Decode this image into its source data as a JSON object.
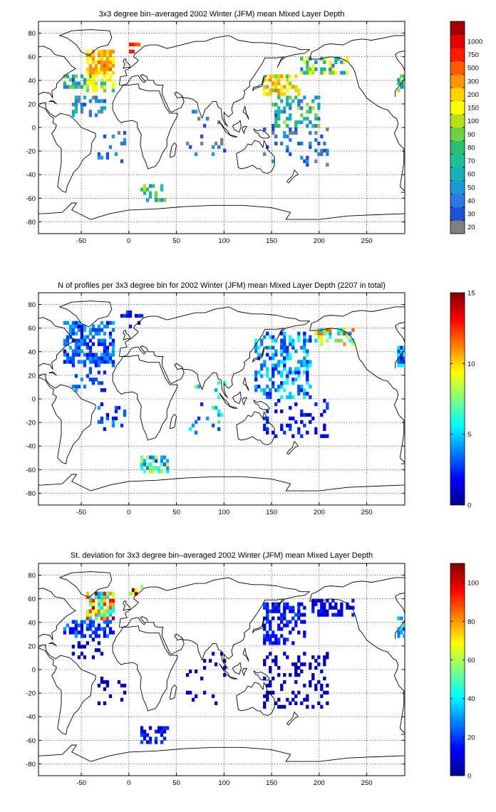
{
  "chart_data": [
    {
      "type": "heatmap",
      "title": "3x3 degree bin–averaged 2002 Winter (JFM) mean Mixed Layer Depth",
      "xlim": [
        -95,
        290
      ],
      "ylim": [
        -90,
        90
      ],
      "xticks": [
        -50,
        0,
        50,
        100,
        150,
        200,
        250
      ],
      "yticks": [
        80,
        60,
        40,
        20,
        0,
        -20,
        -40,
        -60,
        -80
      ],
      "grid": true,
      "bin_size_deg": 3,
      "colorbar": {
        "type": "categorical",
        "labels": [
          "20",
          "30",
          "40",
          "50",
          "60",
          "70",
          "80",
          "90",
          "100",
          "150",
          "200",
          "300",
          "500",
          "750",
          "1000"
        ],
        "colors": [
          "#808080",
          "#1f50d8",
          "#2b78e4",
          "#1c9ad6",
          "#16b2b8",
          "#1fc095",
          "#28c070",
          "#6fd040",
          "#b5e01c",
          "#ffff00",
          "#ffd200",
          "#ff9400",
          "#ff5a00",
          "#ff1a00",
          "#e20000",
          "#a00000"
        ]
      },
      "regions": [
        {
          "lon": [
            -45,
            -15
          ],
          "lat": [
            45,
            66
          ],
          "value": 200,
          "density": 0.8
        },
        {
          "lon": [
            -45,
            -15
          ],
          "lat": [
            28,
            45
          ],
          "value": 100,
          "density": 0.65
        },
        {
          "lon": [
            -70,
            -45
          ],
          "lat": [
            32,
            45
          ],
          "value": 60,
          "density": 0.5
        },
        {
          "lon": [
            -60,
            -25
          ],
          "lat": [
            8,
            25
          ],
          "value": 40,
          "density": 0.3
        },
        {
          "lon": [
            -35,
            -5
          ],
          "lat": [
            -30,
            -5
          ],
          "value": 30,
          "density": 0.2
        },
        {
          "lon": [
            0,
            15
          ],
          "lat": [
            62,
            72
          ],
          "value": 750,
          "density": 0.5
        },
        {
          "lon": [
            10,
            40
          ],
          "lat": [
            -64,
            -48
          ],
          "value": 60,
          "density": 0.4
        },
        {
          "lon": [
            140,
            180
          ],
          "lat": [
            25,
            45
          ],
          "value": 150,
          "density": 0.6
        },
        {
          "lon": [
            150,
            200
          ],
          "lat": [
            0,
            25
          ],
          "value": 60,
          "density": 0.4
        },
        {
          "lon": [
            180,
            230
          ],
          "lat": [
            45,
            58
          ],
          "value": 80,
          "density": 0.5
        },
        {
          "lon": [
            140,
            210
          ],
          "lat": [
            -35,
            0
          ],
          "value": 30,
          "density": 0.15
        },
        {
          "lon": [
            60,
            100
          ],
          "lat": [
            -30,
            15
          ],
          "value": 30,
          "density": 0.1
        },
        {
          "lon": [
            280,
            290
          ],
          "lat": [
            30,
            45
          ],
          "value": 60,
          "density": 0.5
        }
      ]
    },
    {
      "type": "heatmap",
      "title": "N of profiles per 3x3 degree bin for 2002 Winter (JFM) mean Mixed Layer Depth  (2207 in total)",
      "xlim": [
        -95,
        290
      ],
      "ylim": [
        -90,
        90
      ],
      "xticks": [
        -50,
        0,
        50,
        100,
        150,
        200,
        250
      ],
      "yticks": [
        80,
        60,
        40,
        20,
        0,
        -20,
        -40,
        -60,
        -80
      ],
      "grid": true,
      "bin_size_deg": 3,
      "colorbar": {
        "type": "continuous",
        "colormap": "jet",
        "min": 0,
        "max": 15,
        "ticks": [
          0,
          5,
          10,
          15
        ]
      },
      "regions": [
        {
          "lon": [
            -70,
            -15
          ],
          "lat": [
            25,
            65
          ],
          "value": 3,
          "density": 0.55
        },
        {
          "lon": [
            -60,
            -25
          ],
          "lat": [
            5,
            25
          ],
          "value": 3,
          "density": 0.3
        },
        {
          "lon": [
            -35,
            -5
          ],
          "lat": [
            -30,
            -5
          ],
          "value": 3,
          "density": 0.2
        },
        {
          "lon": [
            -10,
            15
          ],
          "lat": [
            60,
            75
          ],
          "value": 2,
          "density": 0.35
        },
        {
          "lon": [
            10,
            40
          ],
          "lat": [
            -64,
            -48
          ],
          "value": 6,
          "density": 0.5
        },
        {
          "lon": [
            130,
            190
          ],
          "lat": [
            0,
            55
          ],
          "value": 4,
          "density": 0.45
        },
        {
          "lon": [
            195,
            235
          ],
          "lat": [
            45,
            58
          ],
          "value": 8,
          "density": 0.6
        },
        {
          "lon": [
            140,
            210
          ],
          "lat": [
            -35,
            0
          ],
          "value": 2,
          "density": 0.2
        },
        {
          "lon": [
            60,
            100
          ],
          "lat": [
            -30,
            15
          ],
          "value": 5,
          "density": 0.1
        },
        {
          "lon": [
            280,
            290
          ],
          "lat": [
            25,
            45
          ],
          "value": 4,
          "density": 0.5
        }
      ]
    },
    {
      "type": "heatmap",
      "title": "St. deviation for 3x3 degree bin–averaged 2002 Winter (JFM) mean Mixed Layer Depth",
      "xlim": [
        -95,
        290
      ],
      "ylim": [
        -90,
        90
      ],
      "xticks": [
        -50,
        0,
        50,
        100,
        150,
        200,
        250
      ],
      "yticks": [
        80,
        60,
        40,
        20,
        0,
        -20,
        -40,
        -60,
        -80
      ],
      "grid": true,
      "bin_size_deg": 3,
      "colorbar": {
        "type": "continuous",
        "colormap": "jet",
        "min": 0,
        "max": 110,
        "ticks": [
          0,
          20,
          40,
          60,
          80,
          100
        ]
      },
      "regions": [
        {
          "lon": [
            -45,
            -15
          ],
          "lat": [
            42,
            66
          ],
          "value": 70,
          "density": 0.8
        },
        {
          "lon": [
            -70,
            -15
          ],
          "lat": [
            25,
            42
          ],
          "value": 20,
          "density": 0.55
        },
        {
          "lon": [
            -60,
            -25
          ],
          "lat": [
            8,
            25
          ],
          "value": 5,
          "density": 0.3
        },
        {
          "lon": [
            -35,
            -5
          ],
          "lat": [
            -30,
            -5
          ],
          "value": 5,
          "density": 0.2
        },
        {
          "lon": [
            0,
            15
          ],
          "lat": [
            62,
            72
          ],
          "value": 90,
          "density": 0.5
        },
        {
          "lon": [
            10,
            40
          ],
          "lat": [
            -64,
            -48
          ],
          "value": 15,
          "density": 0.4
        },
        {
          "lon": [
            140,
            185
          ],
          "lat": [
            20,
            55
          ],
          "value": 15,
          "density": 0.5
        },
        {
          "lon": [
            190,
            235
          ],
          "lat": [
            45,
            58
          ],
          "value": 12,
          "density": 0.6
        },
        {
          "lon": [
            140,
            210
          ],
          "lat": [
            -35,
            15
          ],
          "value": 5,
          "density": 0.25
        },
        {
          "lon": [
            60,
            100
          ],
          "lat": [
            -30,
            15
          ],
          "value": 5,
          "density": 0.1
        },
        {
          "lon": [
            280,
            290
          ],
          "lat": [
            25,
            45
          ],
          "value": 30,
          "density": 0.5
        }
      ]
    }
  ]
}
